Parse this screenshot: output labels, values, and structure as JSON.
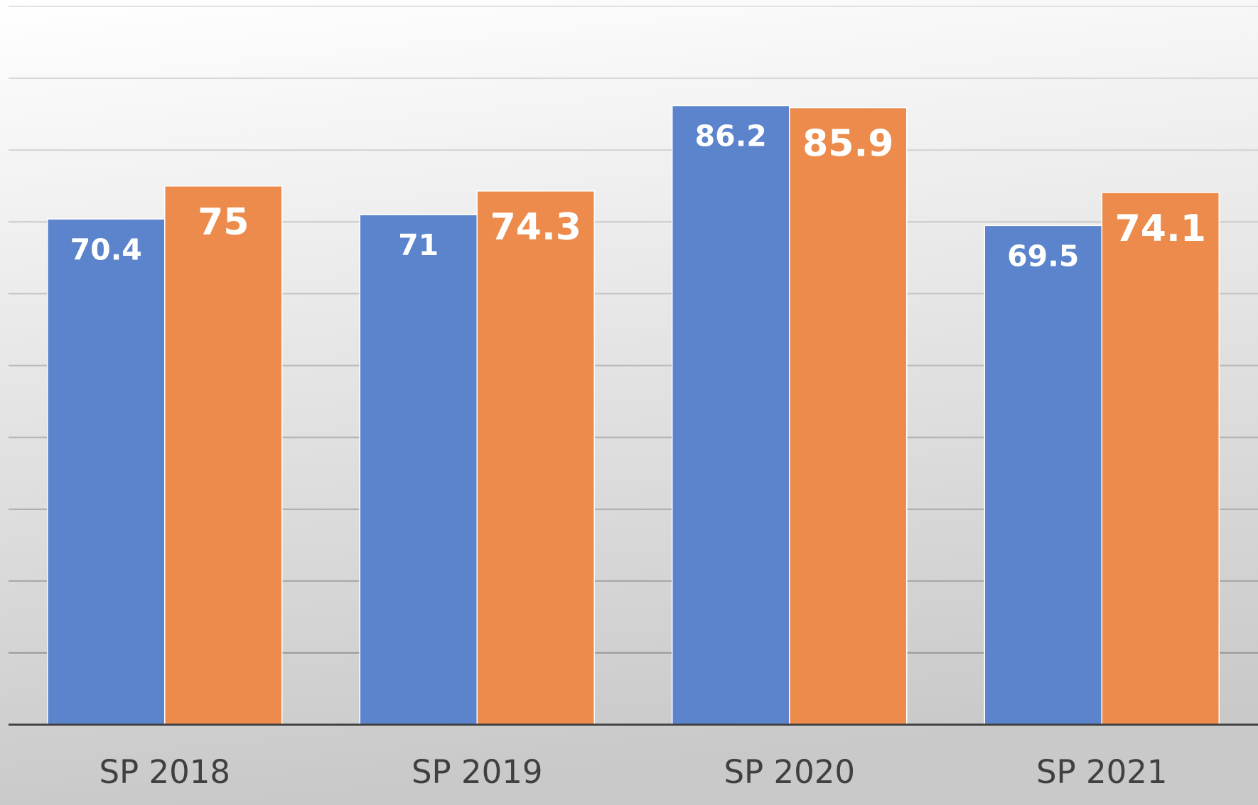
{
  "chart_data": {
    "type": "bar",
    "categories": [
      "SP 2018",
      "SP 2019",
      "SP 2020",
      "SP 2021"
    ],
    "series": [
      {
        "color": "#5b84cc",
        "values": [
          70.4,
          71,
          86.2,
          69.5
        ]
      },
      {
        "color": "#ec8b4b",
        "values": [
          75,
          74.3,
          85.9,
          74.1
        ]
      }
    ],
    "ylim": [
      0,
      100
    ],
    "yticks": [
      0,
      10,
      20,
      30,
      40,
      50,
      60,
      70,
      80,
      90,
      100
    ],
    "grid": true
  }
}
